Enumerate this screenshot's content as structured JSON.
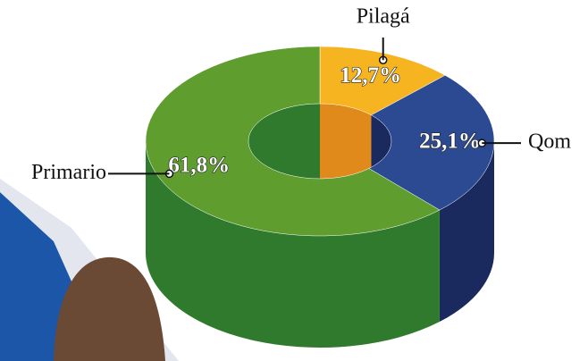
{
  "chart_data": {
    "type": "donut3d",
    "categories": [
      "Pilagá",
      "Qom",
      "Primario"
    ],
    "values": [
      12.7,
      25.1,
      61.8
    ],
    "value_labels": [
      "12,7%",
      "25,1%",
      "61,8%"
    ],
    "colors": [
      "#f6b420",
      "#2b4a92",
      "#5f9d2f"
    ],
    "side_colors": [
      "#e08a1c",
      "#1a2a5e",
      "#2f7a2c"
    ]
  }
}
